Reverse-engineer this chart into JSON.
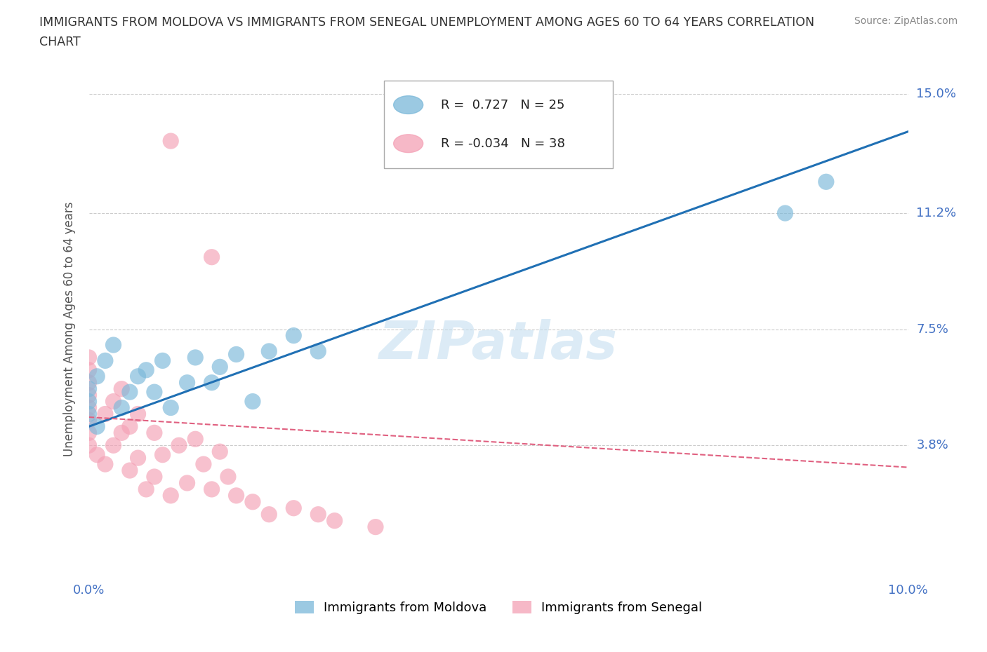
{
  "title_line1": "IMMIGRANTS FROM MOLDOVA VS IMMIGRANTS FROM SENEGAL UNEMPLOYMENT AMONG AGES 60 TO 64 YEARS CORRELATION",
  "title_line2": "CHART",
  "source": "Source: ZipAtlas.com",
  "ylabel": "Unemployment Among Ages 60 to 64 years",
  "xlim": [
    0.0,
    0.1
  ],
  "ylim": [
    -0.005,
    0.155
  ],
  "plot_ylim": [
    -0.005,
    0.155
  ],
  "xticks": [
    0.0,
    0.025,
    0.05,
    0.075,
    0.1
  ],
  "xtick_labels": [
    "0.0%",
    "",
    "",
    "",
    "10.0%"
  ],
  "yticks": [
    0.038,
    0.075,
    0.112,
    0.15
  ],
  "ytick_labels": [
    "3.8%",
    "7.5%",
    "11.2%",
    "15.0%"
  ],
  "moldova_color": "#7ab8d9",
  "senegal_color": "#f4a0b5",
  "moldova_x": [
    0.0,
    0.0,
    0.0,
    0.001,
    0.001,
    0.002,
    0.003,
    0.004,
    0.005,
    0.006,
    0.007,
    0.008,
    0.009,
    0.01,
    0.012,
    0.013,
    0.015,
    0.016,
    0.018,
    0.02,
    0.022,
    0.025,
    0.028,
    0.085,
    0.09
  ],
  "moldova_y": [
    0.048,
    0.052,
    0.056,
    0.044,
    0.06,
    0.065,
    0.07,
    0.05,
    0.055,
    0.06,
    0.062,
    0.055,
    0.065,
    0.05,
    0.058,
    0.066,
    0.058,
    0.063,
    0.067,
    0.052,
    0.068,
    0.073,
    0.068,
    0.112,
    0.122
  ],
  "senegal_x": [
    0.0,
    0.0,
    0.0,
    0.0,
    0.0,
    0.0,
    0.0,
    0.0,
    0.001,
    0.002,
    0.002,
    0.003,
    0.003,
    0.004,
    0.004,
    0.005,
    0.005,
    0.006,
    0.006,
    0.007,
    0.008,
    0.008,
    0.009,
    0.01,
    0.011,
    0.012,
    0.013,
    0.014,
    0.015,
    0.016,
    0.017,
    0.018,
    0.02,
    0.022,
    0.025,
    0.028,
    0.03,
    0.035
  ],
  "senegal_y": [
    0.038,
    0.042,
    0.046,
    0.05,
    0.054,
    0.058,
    0.062,
    0.066,
    0.035,
    0.032,
    0.048,
    0.038,
    0.052,
    0.042,
    0.056,
    0.03,
    0.044,
    0.034,
    0.048,
    0.024,
    0.028,
    0.042,
    0.035,
    0.022,
    0.038,
    0.026,
    0.04,
    0.032,
    0.024,
    0.036,
    0.028,
    0.022,
    0.02,
    0.016,
    0.018,
    0.016,
    0.014,
    0.012
  ],
  "senegal_outlier_x": [
    0.01
  ],
  "senegal_outlier_y": [
    0.135
  ],
  "senegal_outlier2_x": [
    0.015
  ],
  "senegal_outlier2_y": [
    0.098
  ],
  "moldova_trend_x0": 0.0,
  "moldova_trend_y0": 0.044,
  "moldova_trend_x1": 0.1,
  "moldova_trend_y1": 0.138,
  "senegal_trend_x0": 0.0,
  "senegal_trend_y0": 0.047,
  "senegal_trend_x1": 0.1,
  "senegal_trend_y1": 0.031,
  "moldova_R": 0.727,
  "moldova_N": 25,
  "senegal_R": -0.034,
  "senegal_N": 38,
  "watermark": "ZIPatlas",
  "watermark_color": "#c5dff0",
  "grid_color": "#cccccc",
  "title_color": "#333333",
  "axis_label_color": "#555555",
  "tick_color": "#4472c4",
  "trend_blue": "#2070b4",
  "trend_pink": "#e06080",
  "background_color": "#ffffff"
}
